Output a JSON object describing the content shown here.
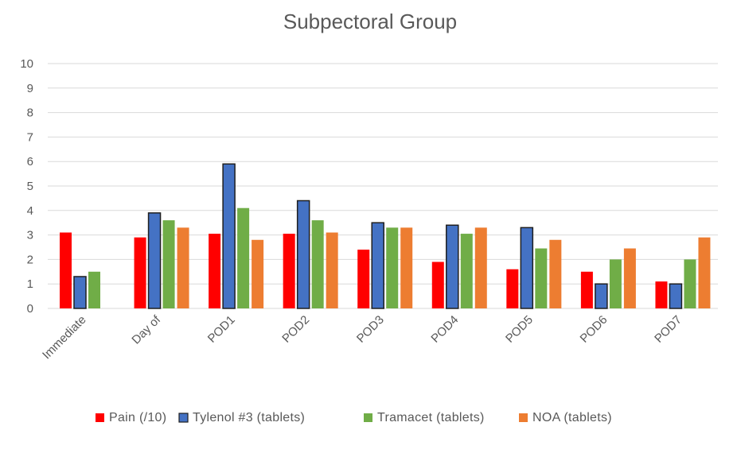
{
  "chart_data": {
    "type": "bar",
    "title": "Subpectoral Group",
    "xlabel": "",
    "ylabel": "",
    "ylim": [
      0,
      10
    ],
    "yticks": [
      0,
      1,
      2,
      3,
      4,
      5,
      6,
      7,
      8,
      9,
      10
    ],
    "grid": true,
    "legend": "bottom",
    "categories": [
      "Immediate",
      "Day of",
      "POD1",
      "POD2",
      "POD3",
      "POD4",
      "POD5",
      "POD6",
      "POD7"
    ],
    "series": [
      {
        "name": "Pain (/10)",
        "color": "#ff0000",
        "values": [
          3.1,
          2.9,
          3.05,
          3.05,
          2.4,
          1.9,
          1.6,
          1.5,
          1.1
        ]
      },
      {
        "name": "Tylenol #3 (tablets)",
        "color": "#4472c4",
        "values": [
          1.3,
          3.9,
          5.9,
          4.4,
          3.5,
          3.4,
          3.3,
          1.0,
          1.0
        ]
      },
      {
        "name": "Tramacet (tablets)",
        "color": "#70ad47",
        "values": [
          1.5,
          3.6,
          4.1,
          3.6,
          3.3,
          3.05,
          2.45,
          2.0,
          2.0
        ]
      },
      {
        "name": "NOA (tablets)",
        "color": "#ed7d31",
        "values": [
          null,
          3.3,
          2.8,
          3.1,
          3.3,
          3.3,
          2.8,
          2.45,
          2.9
        ]
      }
    ]
  }
}
